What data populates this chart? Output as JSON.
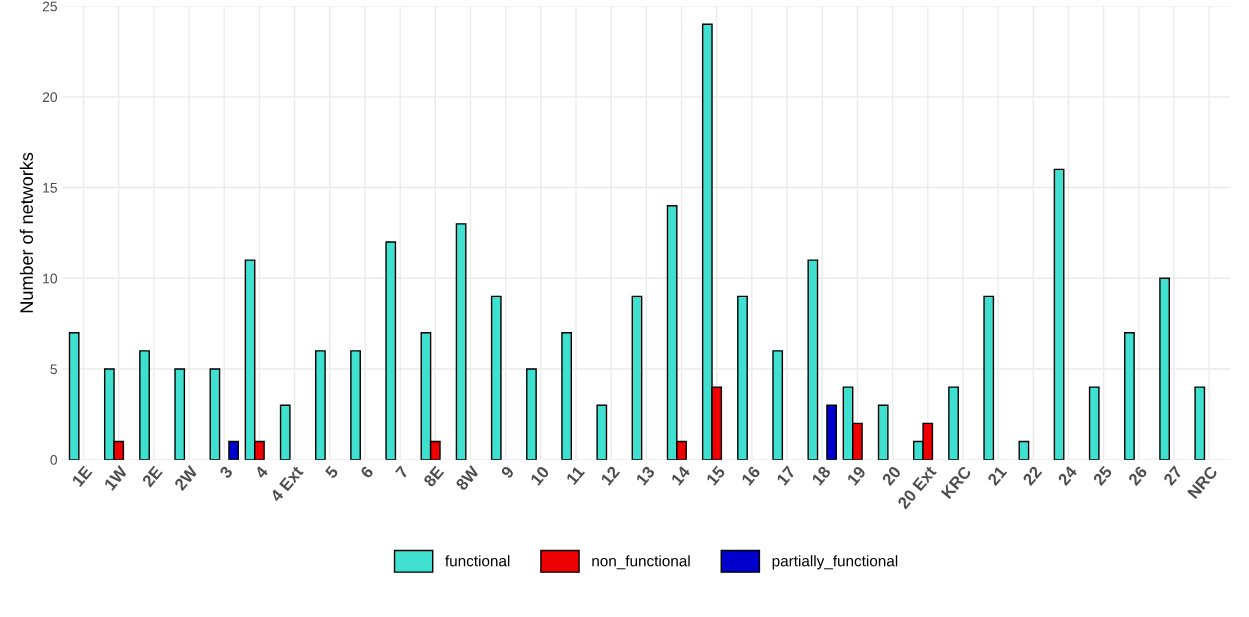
{
  "chart_data": {
    "type": "bar",
    "ylabel": "Number of networks",
    "categories": [
      "1E",
      "1W",
      "2E",
      "2W",
      "3",
      "4",
      "4 Ext",
      "5",
      "6",
      "7",
      "8E",
      "8W",
      "9",
      "10",
      "11",
      "12",
      "13",
      "14",
      "15",
      "16",
      "17",
      "18",
      "19",
      "20",
      "20 Ext",
      "KRC",
      "21",
      "22",
      "24",
      "25",
      "26",
      "27",
      "NRC"
    ],
    "series": [
      {
        "name": "functional",
        "color": "#40e0d0",
        "values": [
          7,
          5,
          6,
          5,
          5,
          11,
          3,
          6,
          6,
          12,
          7,
          13,
          9,
          5,
          7,
          3,
          9,
          14,
          24,
          9,
          6,
          11,
          4,
          3,
          1,
          4,
          9,
          1,
          16,
          4,
          7,
          10,
          4
        ]
      },
      {
        "name": "non_functional",
        "color": "#ee0000",
        "values": [
          null,
          1,
          null,
          null,
          null,
          1,
          null,
          null,
          null,
          null,
          1,
          null,
          null,
          null,
          null,
          null,
          null,
          1,
          4,
          null,
          null,
          null,
          2,
          null,
          2,
          null,
          null,
          null,
          null,
          null,
          null,
          null,
          null
        ]
      },
      {
        "name": "partially_functional",
        "color": "#0000cd",
        "values": [
          null,
          null,
          null,
          null,
          1,
          null,
          null,
          null,
          null,
          null,
          null,
          null,
          null,
          null,
          null,
          null,
          null,
          null,
          null,
          null,
          null,
          3,
          null,
          null,
          null,
          null,
          null,
          null,
          null,
          null,
          null,
          null,
          null
        ]
      }
    ],
    "ylim": [
      0,
      25
    ],
    "yticks": [
      0,
      5,
      10,
      15,
      20,
      25
    ],
    "grid": true,
    "legend": "bottom"
  }
}
